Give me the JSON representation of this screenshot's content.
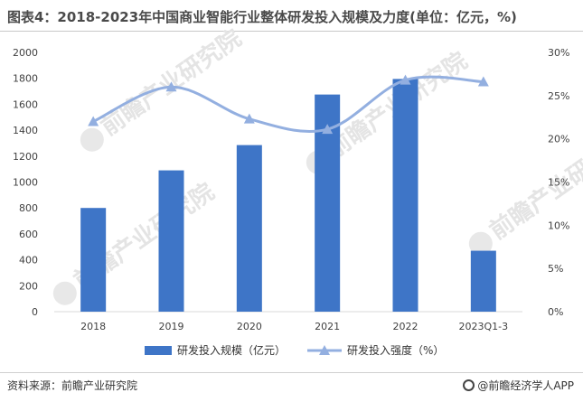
{
  "title": "图表4：2018-2023年中国商业智能行业整体研发投入规模及力度(单位：亿元，%)",
  "watermark": "前瞻产业研究院",
  "source": "资料来源：前瞻产业研究院",
  "brand": "@前瞻经济学人APP",
  "colors": {
    "bar": "#3e75c7",
    "line": "#93afe0",
    "grid": "#d9d9d9"
  },
  "chart_data": {
    "type": "bar",
    "categories": [
      "2018",
      "2019",
      "2020",
      "2021",
      "2022",
      "2023Q1-3"
    ],
    "series": [
      {
        "name": "研发投入规模（亿元）",
        "type": "bar",
        "axis": "left",
        "values": [
          800,
          1090,
          1285,
          1675,
          1795,
          470
        ]
      },
      {
        "name": "研发投入强度（%）",
        "type": "line",
        "axis": "right",
        "values": [
          22.0,
          26.0,
          22.3,
          21.1,
          26.8,
          26.6
        ]
      }
    ],
    "y_left": {
      "lim": [
        0,
        2000
      ],
      "ticks": [
        "0",
        "200",
        "400",
        "600",
        "800",
        "1000",
        "1200",
        "1400",
        "1600",
        "1800",
        "2000"
      ]
    },
    "y_right": {
      "lim": [
        0,
        30
      ],
      "ticks": [
        "0%",
        "5%",
        "10%",
        "15%",
        "20%",
        "25%",
        "30%"
      ]
    },
    "legend_position": "bottom",
    "grid": false
  }
}
